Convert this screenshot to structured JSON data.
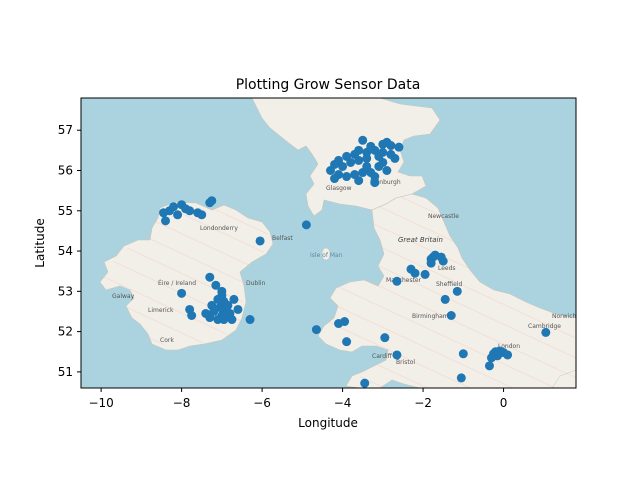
{
  "chart_data": {
    "type": "scatter",
    "title": "Plotting Grow Sensor Data",
    "xlabel": "Longitude",
    "ylabel": "Latitude",
    "xlim": [
      -10.5,
      1.8
    ],
    "ylim": [
      50.6,
      57.8
    ],
    "xticks": [
      -10,
      -8,
      -6,
      -4,
      -2,
      0
    ],
    "xtick_labels": [
      "−10",
      "−8",
      "−6",
      "−4",
      "−2",
      "0"
    ],
    "yticks": [
      51,
      52,
      53,
      54,
      55,
      56,
      57
    ],
    "ytick_labels": [
      "51",
      "52",
      "53",
      "54",
      "55",
      "56",
      "57"
    ],
    "grid": false,
    "legend": "none",
    "background": "OpenStreetMap basemap of Great Britain and Ireland",
    "colors": {
      "marker": "#1f77b4",
      "sea": "#aad3df",
      "land": "#f2efe9"
    },
    "map_labels": [
      "Great Britain",
      "Isle of Man",
      "Éire / Ireland",
      "Belfast",
      "Glasgow",
      "Edinburgh",
      "Newcastle",
      "Leeds",
      "Manchester",
      "Sheffield",
      "Birmingham",
      "Cardiff",
      "Bristol",
      "London",
      "Cambridge",
      "Norwich",
      "Cork",
      "Limerick",
      "Dublin",
      "Londonderry",
      "Galway"
    ],
    "points": [
      [
        -3.5,
        56.75
      ],
      [
        -3.3,
        56.6
      ],
      [
        -3.0,
        56.65
      ],
      [
        -2.9,
        56.7
      ],
      [
        -2.8,
        56.62
      ],
      [
        -2.6,
        56.58
      ],
      [
        -3.6,
        56.5
      ],
      [
        -3.4,
        56.45
      ],
      [
        -3.2,
        56.5
      ],
      [
        -3.0,
        56.45
      ],
      [
        -2.8,
        56.4
      ],
      [
        -3.1,
        56.35
      ],
      [
        -3.4,
        56.3
      ],
      [
        -3.7,
        56.4
      ],
      [
        -3.9,
        56.35
      ],
      [
        -4.1,
        56.25
      ],
      [
        -3.8,
        56.2
      ],
      [
        -3.6,
        56.25
      ],
      [
        -4.0,
        56.1
      ],
      [
        -4.2,
        56.15
      ],
      [
        -4.3,
        56.0
      ],
      [
        -4.1,
        55.9
      ],
      [
        -3.9,
        55.85
      ],
      [
        -3.7,
        55.9
      ],
      [
        -3.5,
        55.95
      ],
      [
        -3.3,
        55.95
      ],
      [
        -3.2,
        55.85
      ],
      [
        -3.4,
        56.1
      ],
      [
        -3.1,
        56.1
      ],
      [
        -2.9,
        56.0
      ],
      [
        -3.2,
        55.7
      ],
      [
        -3.6,
        55.75
      ],
      [
        -4.2,
        55.8
      ],
      [
        -3.0,
        56.2
      ],
      [
        -2.7,
        56.3
      ],
      [
        -3.3,
        56.55
      ],
      [
        -8.4,
        54.75
      ],
      [
        -8.3,
        55.0
      ],
      [
        -8.2,
        55.1
      ],
      [
        -8.0,
        55.15
      ],
      [
        -7.9,
        55.05
      ],
      [
        -7.8,
        55.0
      ],
      [
        -7.6,
        54.95
      ],
      [
        -7.5,
        54.9
      ],
      [
        -8.1,
        54.9
      ],
      [
        -7.3,
        55.2
      ],
      [
        -7.25,
        55.25
      ],
      [
        -8.45,
        54.95
      ],
      [
        -6.05,
        54.25
      ],
      [
        -4.9,
        54.65
      ],
      [
        -7.3,
        53.35
      ],
      [
        -8.0,
        52.95
      ],
      [
        -7.8,
        52.55
      ],
      [
        -7.75,
        52.4
      ],
      [
        -7.3,
        52.35
      ],
      [
        -7.1,
        52.3
      ],
      [
        -7.0,
        52.4
      ],
      [
        -6.9,
        52.5
      ],
      [
        -6.8,
        52.45
      ],
      [
        -6.75,
        52.3
      ],
      [
        -7.2,
        52.5
      ],
      [
        -7.05,
        52.6
      ],
      [
        -6.95,
        52.75
      ],
      [
        -7.1,
        52.8
      ],
      [
        -6.85,
        52.65
      ],
      [
        -6.7,
        52.8
      ],
      [
        -7.0,
        53.0
      ],
      [
        -7.15,
        53.15
      ],
      [
        -7.25,
        52.65
      ],
      [
        -6.6,
        52.55
      ],
      [
        -6.3,
        52.3
      ],
      [
        -7.4,
        52.45
      ],
      [
        -6.95,
        52.3
      ],
      [
        -7.0,
        52.9
      ],
      [
        -4.65,
        52.05
      ],
      [
        -4.1,
        52.2
      ],
      [
        -3.95,
        52.25
      ],
      [
        -3.9,
        51.75
      ],
      [
        -2.95,
        51.85
      ],
      [
        -3.45,
        50.72
      ],
      [
        -2.65,
        51.42
      ],
      [
        -2.65,
        53.25
      ],
      [
        -2.3,
        53.55
      ],
      [
        -2.2,
        53.45
      ],
      [
        -1.95,
        53.42
      ],
      [
        -1.8,
        53.8
      ],
      [
        -1.75,
        53.85
      ],
      [
        -1.8,
        53.7
      ],
      [
        -1.5,
        53.75
      ],
      [
        -1.7,
        53.9
      ],
      [
        -1.55,
        53.85
      ],
      [
        -1.45,
        52.8
      ],
      [
        -1.3,
        52.4
      ],
      [
        -1.15,
        53.0
      ],
      [
        -1.0,
        51.45
      ],
      [
        -1.05,
        50.85
      ],
      [
        -0.35,
        51.15
      ],
      [
        -0.3,
        51.35
      ],
      [
        -0.25,
        51.45
      ],
      [
        -0.2,
        51.5
      ],
      [
        -0.1,
        51.52
      ],
      [
        0.0,
        51.48
      ],
      [
        0.1,
        51.42
      ],
      [
        -0.15,
        51.4
      ],
      [
        1.05,
        51.98
      ]
    ]
  }
}
